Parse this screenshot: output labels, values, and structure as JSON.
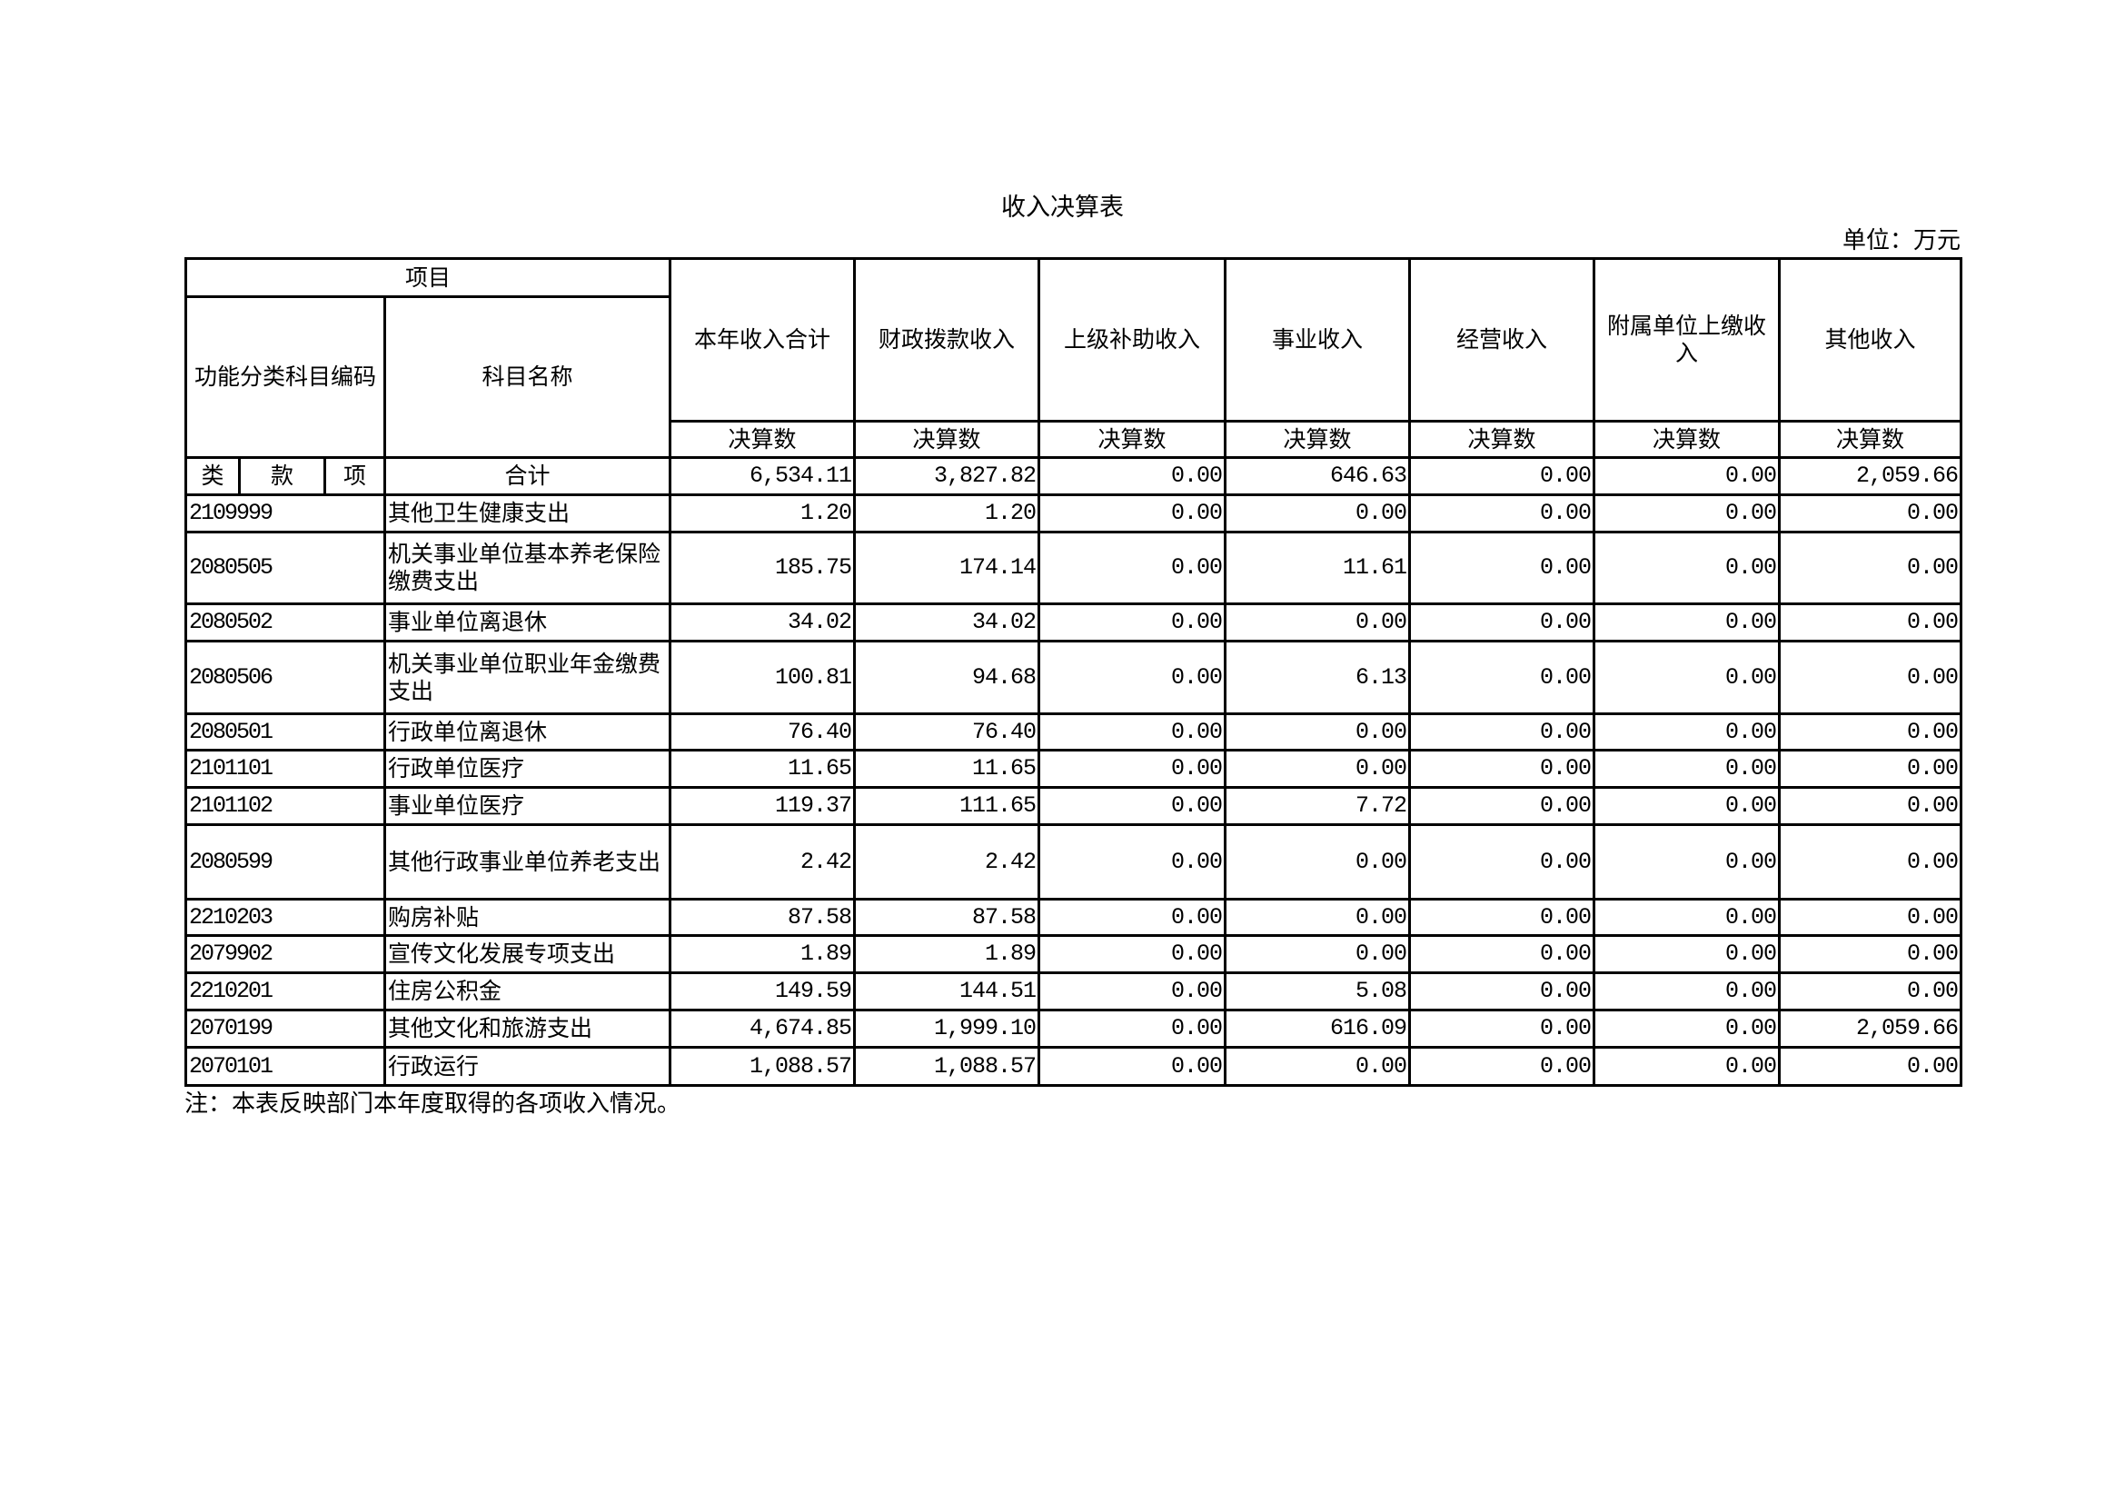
{
  "title": "收入决算表",
  "unit": "单位：万元",
  "header": {
    "project": "项目",
    "code": "功能分类科目编码",
    "name": "科目名称",
    "columns": [
      "本年收入合计",
      "财政拨款收入",
      "上级补助收入",
      "事业收入",
      "经营收入",
      "附属单位上缴收入",
      "其他收入"
    ],
    "sub": "决算数",
    "lei": "类",
    "kuan": "款",
    "xiang": "项"
  },
  "total": {
    "label": "合计",
    "values": [
      "6,534.11",
      "3,827.82",
      "0.00",
      "646.63",
      "0.00",
      "0.00",
      "2,059.66"
    ]
  },
  "rows": [
    {
      "code": "2109999",
      "name": "其他卫生健康支出",
      "values": [
        "1.20",
        "1.20",
        "0.00",
        "0.00",
        "0.00",
        "0.00",
        "0.00"
      ]
    },
    {
      "code": "2080505",
      "name": "机关事业单位基本养老保险缴费支出",
      "values": [
        "185.75",
        "174.14",
        "0.00",
        "11.61",
        "0.00",
        "0.00",
        "0.00"
      ]
    },
    {
      "code": "2080502",
      "name": "事业单位离退休",
      "values": [
        "34.02",
        "34.02",
        "0.00",
        "0.00",
        "0.00",
        "0.00",
        "0.00"
      ]
    },
    {
      "code": "2080506",
      "name": "机关事业单位职业年金缴费支出",
      "values": [
        "100.81",
        "94.68",
        "0.00",
        "6.13",
        "0.00",
        "0.00",
        "0.00"
      ]
    },
    {
      "code": "2080501",
      "name": "行政单位离退休",
      "values": [
        "76.40",
        "76.40",
        "0.00",
        "0.00",
        "0.00",
        "0.00",
        "0.00"
      ]
    },
    {
      "code": "2101101",
      "name": "行政单位医疗",
      "values": [
        "11.65",
        "11.65",
        "0.00",
        "0.00",
        "0.00",
        "0.00",
        "0.00"
      ]
    },
    {
      "code": "2101102",
      "name": "事业单位医疗",
      "values": [
        "119.37",
        "111.65",
        "0.00",
        "7.72",
        "0.00",
        "0.00",
        "0.00"
      ]
    },
    {
      "code": "2080599",
      "name": "其他行政事业单位养老支出",
      "values": [
        "2.42",
        "2.42",
        "0.00",
        "0.00",
        "0.00",
        "0.00",
        "0.00"
      ]
    },
    {
      "code": "2210203",
      "name": "购房补贴",
      "values": [
        "87.58",
        "87.58",
        "0.00",
        "0.00",
        "0.00",
        "0.00",
        "0.00"
      ]
    },
    {
      "code": "2079902",
      "name": "宣传文化发展专项支出",
      "values": [
        "1.89",
        "1.89",
        "0.00",
        "0.00",
        "0.00",
        "0.00",
        "0.00"
      ]
    },
    {
      "code": "2210201",
      "name": "住房公积金",
      "values": [
        "149.59",
        "144.51",
        "0.00",
        "5.08",
        "0.00",
        "0.00",
        "0.00"
      ]
    },
    {
      "code": "2070199",
      "name": "其他文化和旅游支出",
      "values": [
        "4,674.85",
        "1,999.10",
        "0.00",
        "616.09",
        "0.00",
        "0.00",
        "2,059.66"
      ]
    },
    {
      "code": "2070101",
      "name": "行政运行",
      "values": [
        "1,088.57",
        "1,088.57",
        "0.00",
        "0.00",
        "0.00",
        "0.00",
        "0.00"
      ]
    }
  ],
  "note": "注：本表反映部门本年度取得的各项收入情况。"
}
